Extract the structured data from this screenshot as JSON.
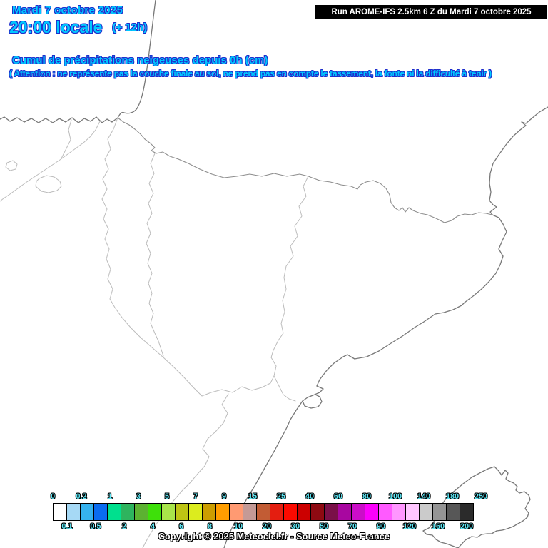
{
  "header": {
    "date_line": "Mardi 7 octobre 2025",
    "time_line": "20:00 locale",
    "time_offset": "(+ 12h)",
    "run_box": "Run AROME-IFS 2.5km 6 Z du Mardi 7 octobre 2025",
    "title": "Cumul de précipitations neigeuses depuis 0h (cm)",
    "warning": "( Attention : ne représente pas la couche finale au sol, ne prend pas en compte le tassement, la fonte ni la difficulté à tenir )"
  },
  "footer": {
    "copyright": "Copyright © 2025 Meteociel.fr - Source Meteo-France"
  },
  "colors": {
    "header_text": "#00c8ff",
    "header_outline": "#1e2ecc",
    "legend_label": "#5ce4f2",
    "run_box_bg": "#000000",
    "run_box_text": "#ffffff",
    "coast_line": "#787878",
    "region_line": "#bcbcbc",
    "map_background": "#ffffff"
  },
  "legend": {
    "unit": "cm",
    "labels": [
      "0",
      "0.1",
      "0.2",
      "0.5",
      "1",
      "2",
      "3",
      "4",
      "5",
      "6",
      "7",
      "8",
      "9",
      "10",
      "15",
      "20",
      "25",
      "30",
      "40",
      "50",
      "60",
      "70",
      "80",
      "90",
      "100",
      "120",
      "140",
      "160",
      "180",
      "200",
      "250"
    ],
    "colors": [
      "#ffffff",
      "#a6d9f5",
      "#36b2ee",
      "#0a6cf0",
      "#00e08e",
      "#2eb45e",
      "#5cb231",
      "#3ee00a",
      "#a8e44a",
      "#bec414",
      "#dcec1e",
      "#cc9e00",
      "#ff9e00",
      "#ff9a72",
      "#c49a96",
      "#c25c34",
      "#e41e10",
      "#fc0a00",
      "#cc0000",
      "#8e0a12",
      "#7a1048",
      "#a807a0",
      "#cb0dc8",
      "#fb00fb",
      "#ff5aff",
      "#ff96ff",
      "#ffc6ff",
      "#cbcbcb",
      "#959595",
      "#575757",
      "#2b2b2b"
    ]
  }
}
